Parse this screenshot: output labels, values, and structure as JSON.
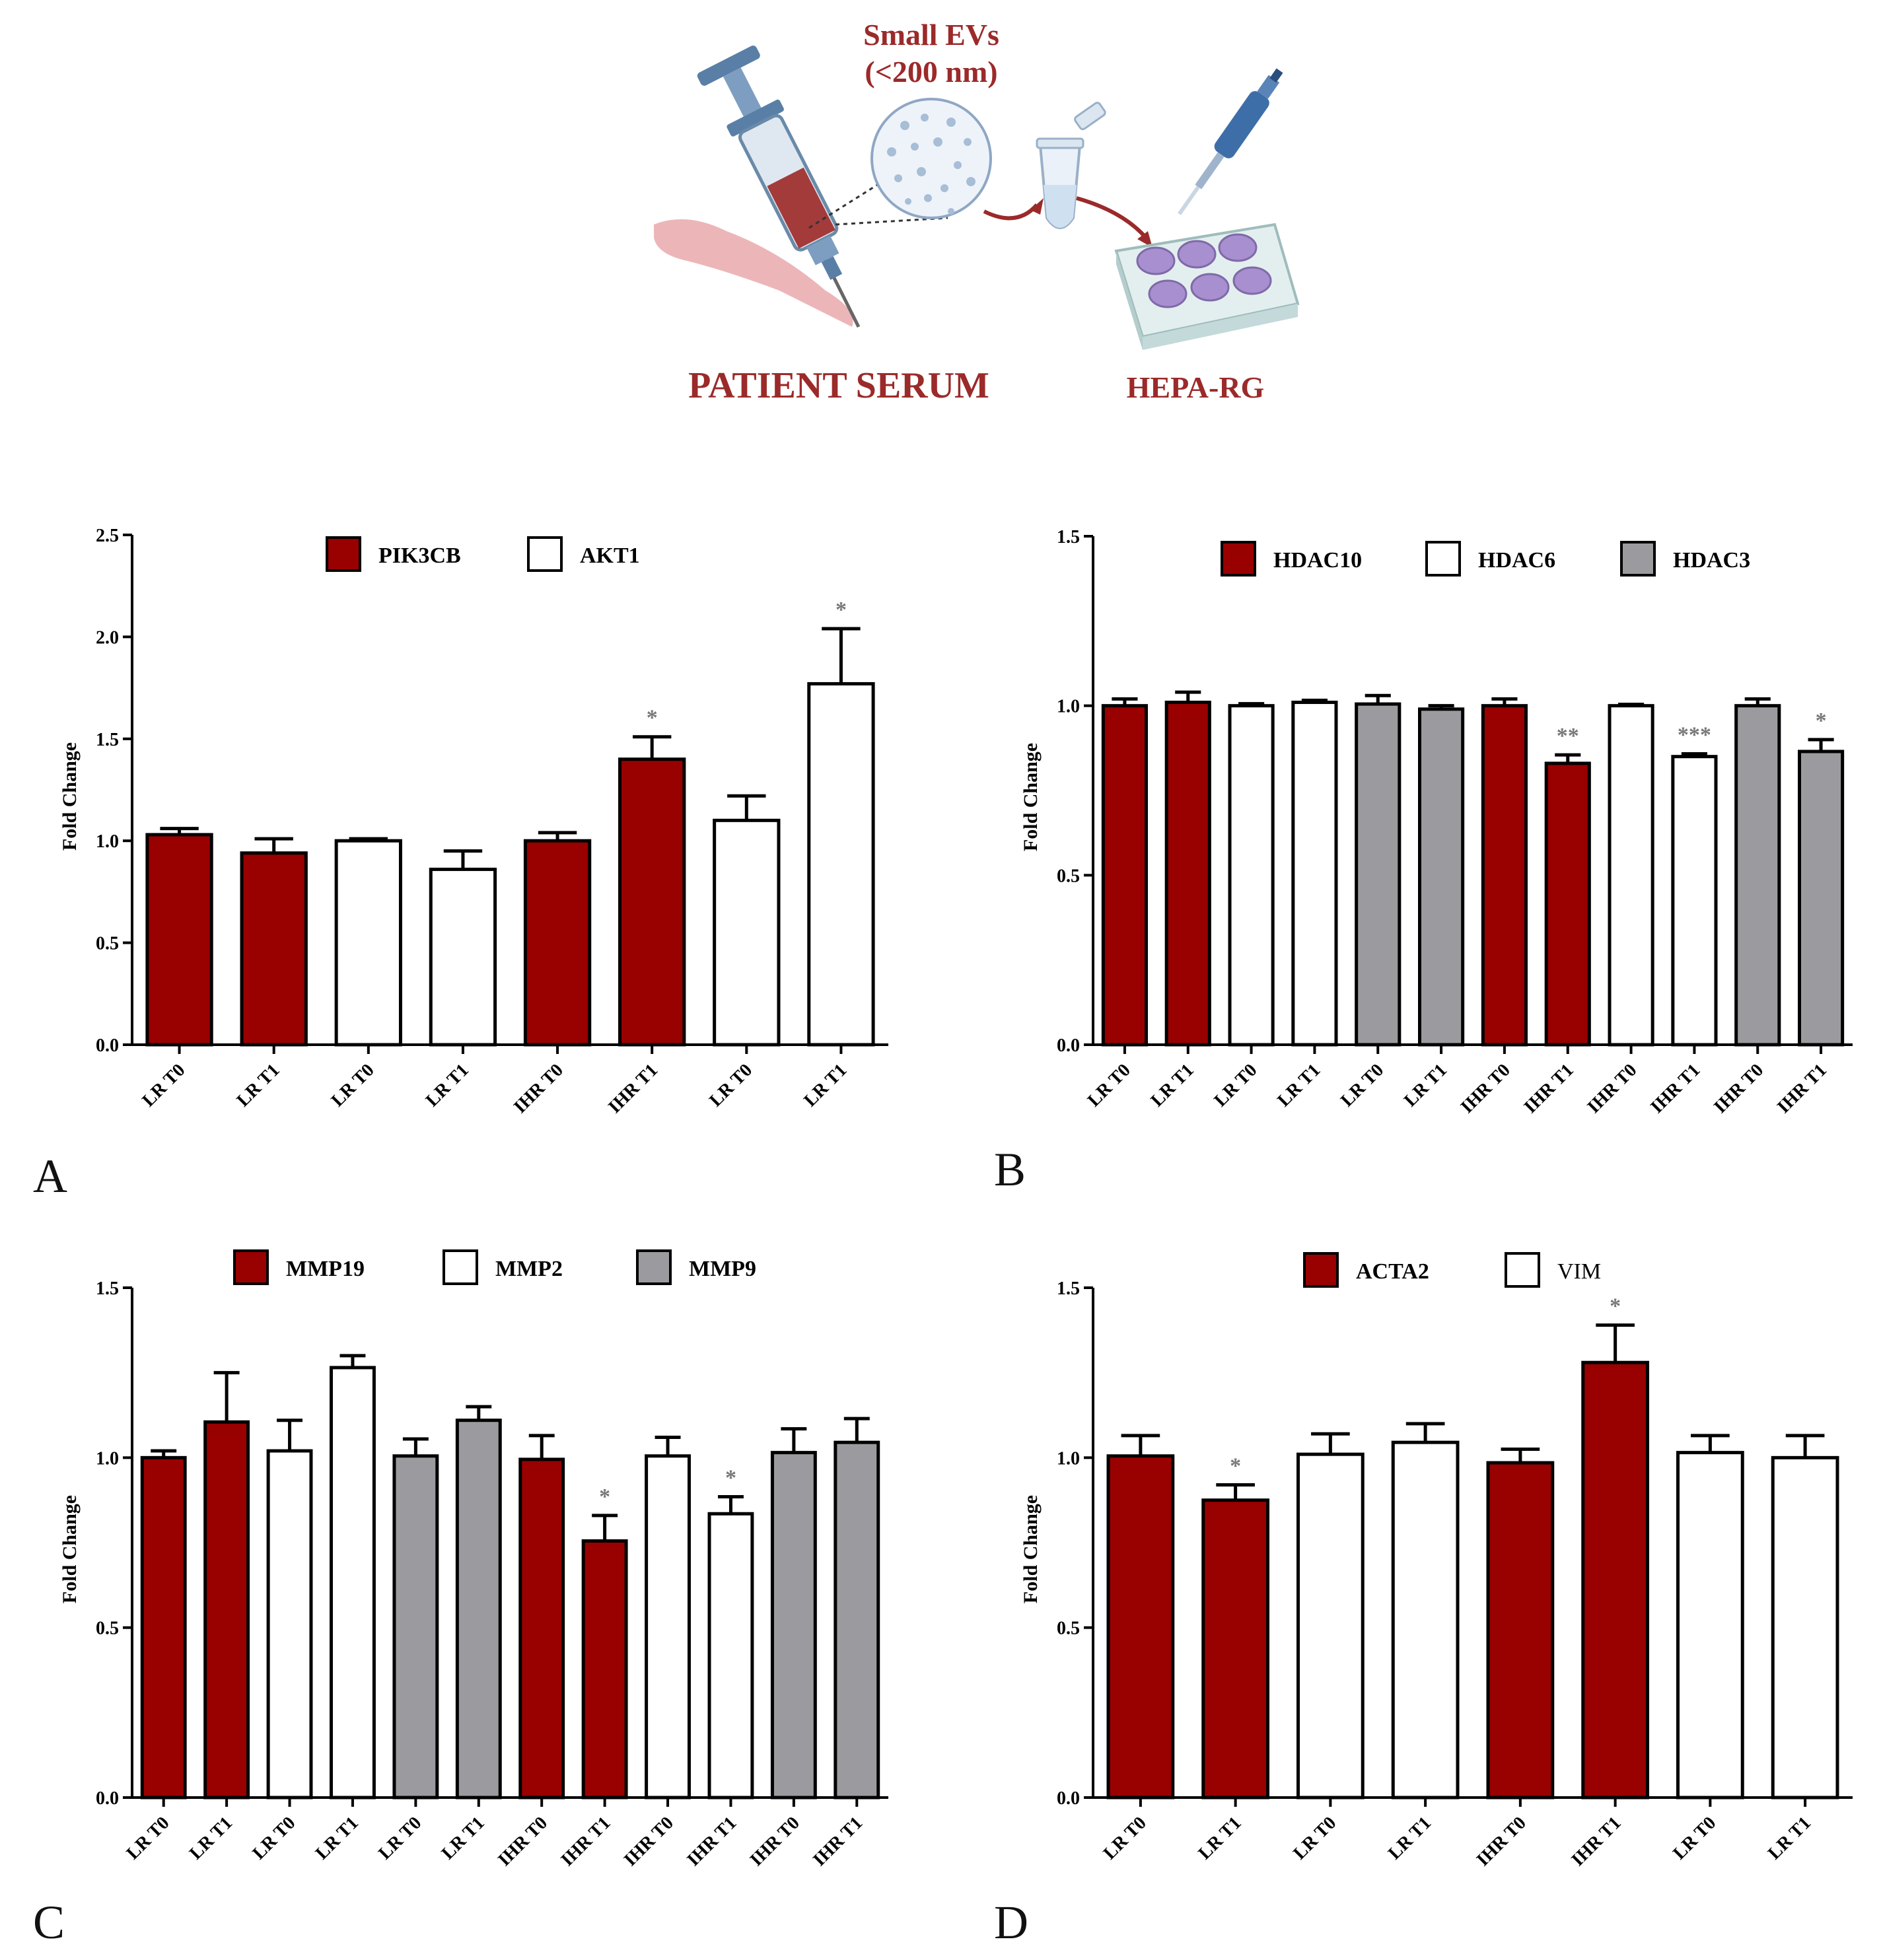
{
  "schematic": {
    "top_label_line1": "Small EVs",
    "top_label_line2": "(<200 nm)",
    "left_label": "PATIENT SERUM",
    "right_label": "HEPA-RG"
  },
  "panel_letters": [
    "A",
    "B",
    "C",
    "D"
  ],
  "colors": {
    "red": "#990000",
    "white": "#ffffff",
    "gray": "#9b9b9f",
    "star": "#777777"
  },
  "chart_data": [
    {
      "panel": "A",
      "type": "bar",
      "ylabel": "Fold Change",
      "ylim": [
        0,
        2.5
      ],
      "yticks": [
        "0.0",
        "0.5",
        "1.0",
        "1.5",
        "2.0",
        "2.5"
      ],
      "legend": [
        {
          "label": "PIK3CB",
          "color": "red"
        },
        {
          "label": "AKT1",
          "color": "white"
        }
      ],
      "categories": [
        "LR T0",
        "LR T1",
        "LR T0",
        "LR T1",
        "IHR T0",
        "IHR T1",
        "LR T0",
        "LR T1"
      ],
      "values": [
        1.03,
        0.94,
        1.0,
        0.86,
        1.0,
        1.4,
        1.1,
        1.77
      ],
      "errors": [
        0.03,
        0.07,
        0.01,
        0.09,
        0.04,
        0.11,
        0.12,
        0.27
      ],
      "colors": [
        "red",
        "red",
        "white",
        "white",
        "red",
        "red",
        "white",
        "white"
      ],
      "stars": [
        "",
        "",
        "",
        "",
        "",
        "*",
        "",
        "*"
      ]
    },
    {
      "panel": "B",
      "type": "bar",
      "ylabel": "Fold Change",
      "ylim": [
        0,
        1.5
      ],
      "yticks": [
        "0.0",
        "0.5",
        "1.0",
        "1.5"
      ],
      "legend": [
        {
          "label": "HDAC10",
          "color": "red"
        },
        {
          "label": "HDAC6",
          "color": "white"
        },
        {
          "label": "HDAC3",
          "color": "gray"
        }
      ],
      "categories": [
        "LR T0",
        "LR T1",
        "LR T0",
        "LR T1",
        "LR T0",
        "LR T1",
        "IHR T0",
        "IHR T1",
        "IHR T0",
        "IHR T1",
        "IHR T0",
        "IHR T1"
      ],
      "values": [
        1.0,
        1.01,
        1.0,
        1.01,
        1.005,
        0.99,
        1.0,
        0.83,
        1.0,
        0.85,
        1.0,
        0.865
      ],
      "errors": [
        0.02,
        0.03,
        0.006,
        0.006,
        0.025,
        0.01,
        0.02,
        0.025,
        0.004,
        0.008,
        0.02,
        0.035
      ],
      "colors": [
        "red",
        "red",
        "white",
        "white",
        "gray",
        "gray",
        "red",
        "red",
        "white",
        "white",
        "gray",
        "gray"
      ],
      "stars": [
        "",
        "",
        "",
        "",
        "",
        "",
        "",
        "**",
        "",
        "***",
        "",
        "*"
      ]
    },
    {
      "panel": "C",
      "type": "bar",
      "ylabel": "Fold Change",
      "ylim": [
        0,
        1.5
      ],
      "yticks": [
        "0.0",
        "0.5",
        "1.0",
        "1.5"
      ],
      "legend": [
        {
          "label": "MMP19",
          "color": "red"
        },
        {
          "label": "MMP2",
          "color": "white"
        },
        {
          "label": "MMP9",
          "color": "gray"
        }
      ],
      "categories": [
        "LR T0",
        "LR T1",
        "LR T0",
        "LR T1",
        "LR T0",
        "LR T1",
        "IHR T0",
        "IHR T1",
        "IHR T0",
        "IHR T1",
        "IHR T0",
        "IHR T1"
      ],
      "values": [
        1.0,
        1.105,
        1.02,
        1.265,
        1.005,
        1.11,
        0.995,
        0.755,
        1.005,
        0.835,
        1.015,
        1.045
      ],
      "errors": [
        0.02,
        0.145,
        0.09,
        0.035,
        0.05,
        0.04,
        0.07,
        0.075,
        0.055,
        0.05,
        0.07,
        0.07
      ],
      "colors": [
        "red",
        "red",
        "white",
        "white",
        "gray",
        "gray",
        "red",
        "red",
        "white",
        "white",
        "gray",
        "gray"
      ],
      "stars": [
        "",
        "",
        "",
        "",
        "",
        "",
        "",
        "*",
        "",
        "*",
        "",
        ""
      ]
    },
    {
      "panel": "D",
      "type": "bar",
      "ylabel": "Fold Change",
      "ylim": [
        0,
        1.5
      ],
      "yticks": [
        "0.0",
        "0.5",
        "1.0",
        "1.5"
      ],
      "legend": [
        {
          "label": "ACTA2",
          "color": "red"
        },
        {
          "label": "VIM",
          "color": "white"
        }
      ],
      "categories": [
        "LR T0",
        "LR T1",
        "LR T0",
        "LR T1",
        "IHR T0",
        "IHR T1",
        "LR T0",
        "LR T1"
      ],
      "values": [
        1.005,
        0.875,
        1.01,
        1.045,
        0.985,
        1.28,
        1.015,
        1.0
      ],
      "errors": [
        0.06,
        0.045,
        0.06,
        0.055,
        0.04,
        0.11,
        0.05,
        0.065
      ],
      "colors": [
        "red",
        "red",
        "white",
        "white",
        "red",
        "red",
        "white",
        "white"
      ],
      "stars": [
        "",
        "*",
        "",
        "",
        "",
        "*",
        "",
        ""
      ]
    }
  ]
}
